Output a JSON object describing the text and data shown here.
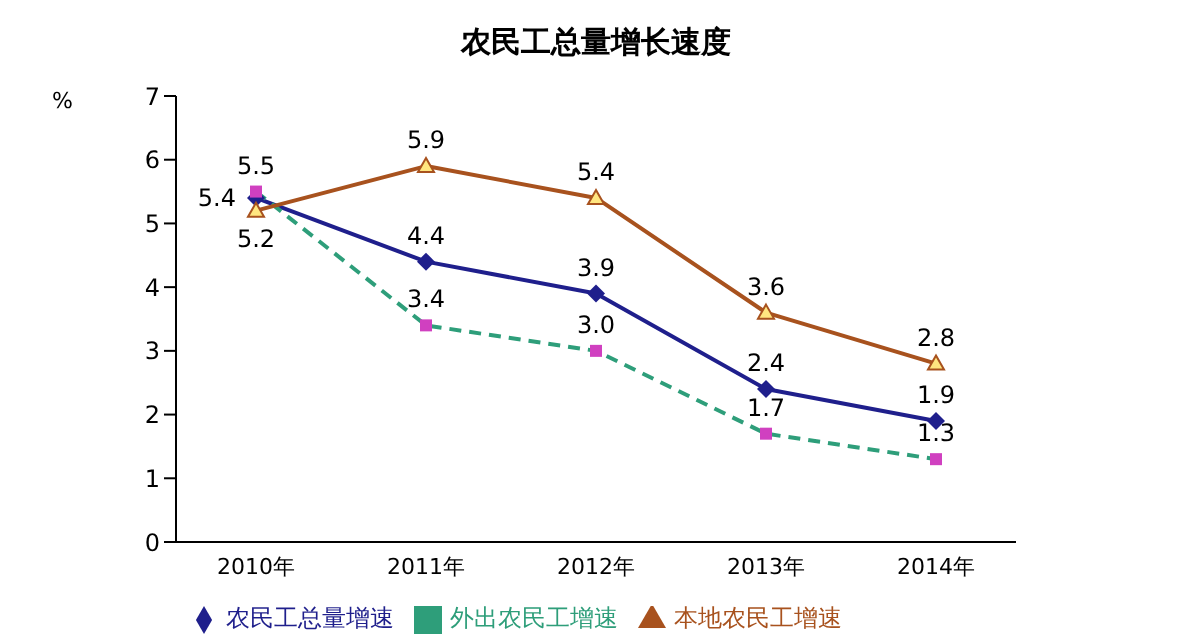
{
  "chart_data": {
    "type": "line",
    "title": "农民工总量增长速度",
    "ylabel": "%",
    "categories": [
      "2010年",
      "2011年",
      "2012年",
      "2013年",
      "2014年"
    ],
    "series": [
      {
        "name": "农民工总量增速",
        "color": "#1f1f8c",
        "values": [
          5.4,
          4.4,
          3.9,
          2.4,
          1.9
        ],
        "value_labels": [
          "5.4",
          "4.4",
          "3.9",
          "2.4",
          "1.9"
        ],
        "marker": "diamond",
        "line_style": "solid"
      },
      {
        "name": "外出农民工增速",
        "color": "#2e9e7a",
        "values": [
          5.5,
          3.4,
          3.0,
          1.7,
          1.3
        ],
        "value_labels": [
          "5.5",
          "3.4",
          "3.0",
          "1.7",
          "1.3"
        ],
        "marker": "square",
        "line_style": "dashed"
      },
      {
        "name": "本地农民工增速",
        "color": "#a8521e",
        "values": [
          5.2,
          5.9,
          5.4,
          3.6,
          2.8
        ],
        "value_labels": [
          "5.2",
          "5.9",
          "5.4",
          "3.6",
          "2.8"
        ],
        "marker": "triangle",
        "line_style": "solid"
      }
    ],
    "ylim": [
      0,
      7
    ],
    "yticks": [
      0,
      1,
      2,
      3,
      4,
      5,
      6,
      7
    ],
    "legend": "bottom"
  }
}
